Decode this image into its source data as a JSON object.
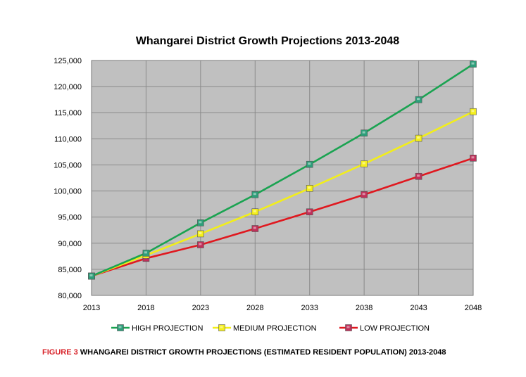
{
  "chart_data": {
    "type": "line",
    "title": "Whangarei District Growth Projections 2013-2048",
    "xlabel": "",
    "ylabel": "",
    "x": [
      "2013",
      "2018",
      "2023",
      "2028",
      "2033",
      "2038",
      "2043",
      "2048"
    ],
    "ylim": [
      80000,
      125000
    ],
    "yticks": [
      "80,000",
      "85,000",
      "90,000",
      "95,000",
      "100,000",
      "105,000",
      "110,000",
      "115,000",
      "120,000",
      "125,000"
    ],
    "yticks_values": [
      80000,
      85000,
      90000,
      95000,
      100000,
      105000,
      110000,
      115000,
      120000,
      125000
    ],
    "grid": true,
    "plot_background": "#c0c0c0",
    "legend_position": "bottom",
    "series": [
      {
        "name": "HIGH PROJECTION",
        "color": "#1aa351",
        "marker_color": "#2e9e7a",
        "values": [
          83700,
          88100,
          93900,
          99300,
          105100,
          111100,
          117500,
          124300
        ]
      },
      {
        "name": "MEDIUM PROJECTION",
        "color": "#f2ee1a",
        "marker_color": "#f5ef1c",
        "values": [
          83700,
          87700,
          91800,
          96000,
          100500,
          105200,
          110100,
          115200
        ]
      },
      {
        "name": "LOW PROJECTION",
        "color": "#e0181f",
        "marker_color": "#c0305a",
        "values": [
          83700,
          87100,
          89700,
          92800,
          96000,
          99300,
          102800,
          106300
        ]
      }
    ]
  },
  "caption": {
    "figure_label": "FIGURE 3",
    "text": "WHANGAREI DISTRICT GROWTH PROJECTIONS (ESTIMATED RESIDENT POPULATION)  2013-2048"
  }
}
